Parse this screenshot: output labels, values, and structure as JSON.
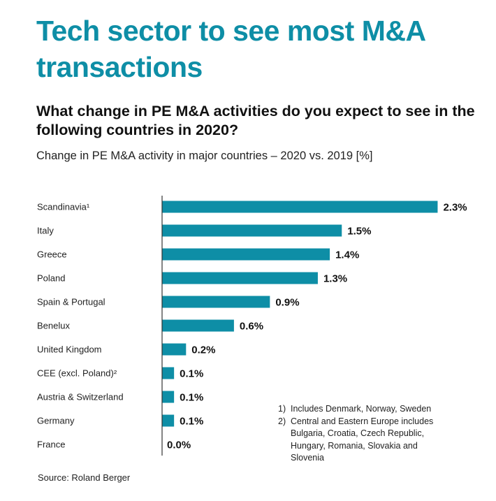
{
  "title": "Tech sector to see most M&A transactions",
  "subtitle": "What change in PE M&A activities do you expect to see in the following countries in 2020?",
  "caption": "Change in PE M&A activity in major countries – 2020 vs. 2019 [%]",
  "source": "Source: Roland Berger",
  "footnotes": [
    {
      "num": "1)",
      "text": "Includes Denmark, Norway, Sweden"
    },
    {
      "num": "2)",
      "text": "Central and Eastern Europe includes Bulgaria, Croatia, Czech Republic, Hungary, Romania, Slovakia and Slovenia"
    }
  ],
  "colors": {
    "bar": "#0e8ea6",
    "title": "#0e8ea6",
    "axis": "#333333"
  },
  "chart_data": {
    "type": "bar",
    "orientation": "horizontal",
    "title": "Change in PE M&A activity in major countries – 2020 vs. 2019 [%]",
    "xlabel": "",
    "ylabel": "",
    "unit": "%",
    "xlim": [
      0,
      2.3
    ],
    "grid": false,
    "categories": [
      "Scandinavia¹",
      "Italy",
      "Greece",
      "Poland",
      "Spain & Portugal",
      "Benelux",
      "United Kingdom",
      "CEE (excl. Poland)²",
      "Austria & Switzerland",
      "Germany",
      "France"
    ],
    "values": [
      2.3,
      1.5,
      1.4,
      1.3,
      0.9,
      0.6,
      0.2,
      0.1,
      0.1,
      0.1,
      0.0
    ],
    "value_labels": [
      "2.3%",
      "1.5%",
      "1.4%",
      "1.3%",
      "0.9%",
      "0.6%",
      "0.2%",
      "0.1%",
      "0.1%",
      "0.1%",
      "0.0%"
    ]
  }
}
